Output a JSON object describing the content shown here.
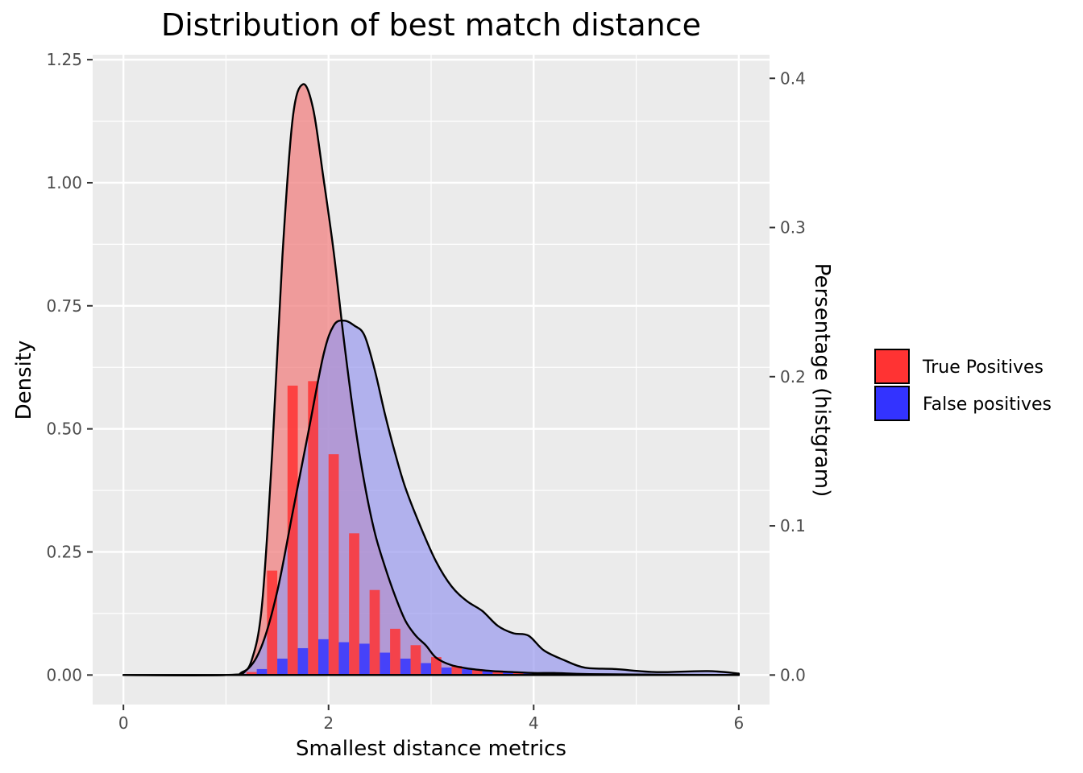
{
  "chart_data": {
    "type": "area",
    "title": "Distribution of best match distance",
    "xlabel": "Smallest distance metrics",
    "ylabel": "Density",
    "y2label": "Persentage (histgram)",
    "xlim": [
      -0.3,
      6.3
    ],
    "ylim": [
      -0.06,
      1.26
    ],
    "y2lim": [
      -0.0198,
      0.4158
    ],
    "x_ticks": [
      "0",
      "2",
      "4",
      "6"
    ],
    "y_ticks": [
      "0.00",
      "0.25",
      "0.50",
      "0.75",
      "1.00",
      "1.25"
    ],
    "y2_ticks": [
      "0.0",
      "0.1",
      "0.2",
      "0.3",
      "0.4"
    ],
    "grid": true,
    "legend_position": "right",
    "series": [
      {
        "name": "True Positives",
        "color": "#ff3333",
        "density_fill": "#f08080",
        "density": {
          "x": [
            0,
            1.0,
            1.15,
            1.25,
            1.35,
            1.45,
            1.55,
            1.65,
            1.75,
            1.85,
            1.95,
            2.05,
            2.15,
            2.25,
            2.35,
            2.45,
            2.55,
            2.65,
            2.75,
            2.85,
            2.95,
            3.05,
            3.2,
            3.4,
            3.6,
            3.8,
            4.0,
            4.2,
            4.5,
            5.0,
            6.0
          ],
          "y": [
            0,
            0,
            0.005,
            0.03,
            0.14,
            0.45,
            0.85,
            1.13,
            1.2,
            1.15,
            1.01,
            0.86,
            0.68,
            0.52,
            0.39,
            0.29,
            0.22,
            0.16,
            0.11,
            0.08,
            0.06,
            0.035,
            0.02,
            0.012,
            0.008,
            0.006,
            0.004,
            0.004,
            0.002,
            0.001,
            0
          ]
        },
        "histogram": {
          "x": [
            1.25,
            1.45,
            1.65,
            1.85,
            2.05,
            2.25,
            2.45,
            2.65,
            2.85,
            3.05,
            3.25,
            3.45,
            3.65,
            3.85,
            4.05
          ],
          "y": [
            0.002,
            0.07,
            0.194,
            0.197,
            0.148,
            0.095,
            0.057,
            0.031,
            0.02,
            0.012,
            0.006,
            0.004,
            0.003,
            0.002,
            0.001
          ]
        }
      },
      {
        "name": "False positives",
        "color": "#3333ff",
        "density_fill": "#9999ee",
        "density": {
          "x": [
            0,
            1.0,
            1.2,
            1.35,
            1.5,
            1.65,
            1.8,
            1.95,
            2.05,
            2.15,
            2.25,
            2.35,
            2.45,
            2.55,
            2.65,
            2.75,
            2.9,
            3.05,
            3.2,
            3.35,
            3.5,
            3.65,
            3.8,
            3.95,
            4.1,
            4.3,
            4.5,
            4.8,
            5.2,
            5.7,
            6.0
          ],
          "y": [
            0,
            0,
            0.01,
            0.06,
            0.17,
            0.33,
            0.49,
            0.65,
            0.71,
            0.72,
            0.71,
            0.69,
            0.62,
            0.53,
            0.45,
            0.38,
            0.3,
            0.23,
            0.18,
            0.15,
            0.13,
            0.1,
            0.085,
            0.08,
            0.05,
            0.03,
            0.015,
            0.012,
            0.006,
            0.008,
            0.003
          ]
        },
        "histogram": {
          "x": [
            1.35,
            1.55,
            1.75,
            1.95,
            2.15,
            2.35,
            2.55,
            2.75,
            2.95,
            3.15,
            3.35,
            3.55,
            3.75,
            3.95
          ],
          "y": [
            0.004,
            0.011,
            0.018,
            0.024,
            0.022,
            0.021,
            0.015,
            0.011,
            0.008,
            0.005,
            0.004,
            0.003,
            0.002,
            0.002
          ]
        }
      }
    ]
  }
}
